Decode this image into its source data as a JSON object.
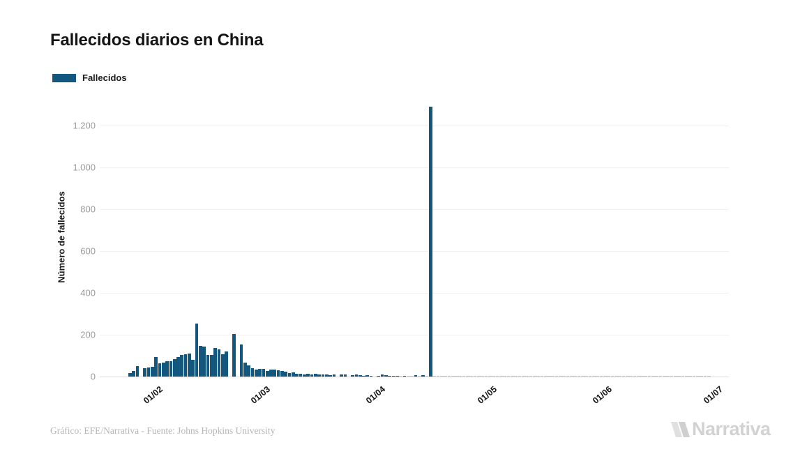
{
  "header": {
    "title": "Fallecidos diarios en China"
  },
  "legend": {
    "label": "Fallecidos"
  },
  "footer": {
    "source": "Gráfico: EFE/Narrativa - Fuente: Johns Hopkins University",
    "logo_text": "Narrativa"
  },
  "colors": {
    "bar": "#14577E",
    "title_text": "#141414",
    "ytick_text": "#9a9a9a",
    "xtick_text": "#141414",
    "gridline": "#f0f0f0",
    "axis_line": "#dcdcdc",
    "footer_text": "#b5b5b5",
    "logo_gray": "#d2d2d2"
  },
  "chart_data": {
    "type": "bar",
    "title": "Fallecidos diarios en China",
    "series_name": "Fallecidos",
    "xlabel": "",
    "ylabel": "Número de fallecidos",
    "ylim": [
      0,
      1333
    ],
    "grid": "horizontal",
    "legend_position": "top-left",
    "yticks": {
      "values": [
        0,
        200,
        400,
        600,
        800,
        1000,
        1200
      ],
      "labels": [
        "0",
        "200",
        "400",
        "600",
        "800",
        "1.000",
        "1.200"
      ]
    },
    "xticks": [
      {
        "label": "01/02",
        "day_index": 5
      },
      {
        "label": "01/03",
        "day_index": 34
      },
      {
        "label": "01/04",
        "day_index": 65
      },
      {
        "label": "01/05",
        "day_index": 95
      },
      {
        "label": "01/06",
        "day_index": 126
      },
      {
        "label": "01/07",
        "day_index": 156
      }
    ],
    "dates": [
      "27/01",
      "28/01",
      "29/01",
      "30/01",
      "31/01",
      "01/02",
      "02/02",
      "03/02",
      "04/02",
      "05/02",
      "06/02",
      "07/02",
      "08/02",
      "09/02",
      "10/02",
      "11/02",
      "12/02",
      "13/02",
      "14/02",
      "15/02",
      "16/02",
      "17/02",
      "18/02",
      "19/02",
      "20/02",
      "21/02",
      "22/02",
      "23/02",
      "24/02",
      "25/02",
      "26/02",
      "27/02",
      "28/02",
      "29/02",
      "01/03",
      "02/03",
      "03/03",
      "04/03",
      "05/03",
      "06/03",
      "07/03",
      "08/03",
      "09/03",
      "10/03",
      "11/03",
      "12/03",
      "13/03",
      "14/03",
      "15/03",
      "16/03",
      "17/03",
      "18/03",
      "19/03",
      "20/03",
      "21/03",
      "22/03",
      "23/03",
      "24/03",
      "25/03",
      "26/03",
      "27/03",
      "28/03",
      "29/03",
      "30/03",
      "31/03",
      "01/04",
      "02/04",
      "03/04",
      "04/04",
      "05/04",
      "06/04",
      "07/04",
      "08/04",
      "09/04",
      "10/04",
      "11/04",
      "12/04",
      "13/04",
      "14/04",
      "15/04",
      "16/04",
      "17/04",
      "18/04",
      "19/04",
      "20/04",
      "21/04",
      "22/04",
      "23/04",
      "24/04",
      "25/04",
      "26/04",
      "27/04",
      "28/04",
      "29/04",
      "30/04",
      "01/05",
      "02/05",
      "03/05",
      "04/05",
      "05/05",
      "06/05",
      "07/05",
      "08/05",
      "09/05",
      "10/05",
      "11/05",
      "12/05",
      "13/05",
      "14/05",
      "15/05",
      "16/05",
      "17/05",
      "18/05",
      "19/05",
      "20/05",
      "21/05",
      "22/05",
      "23/05",
      "24/05",
      "25/05",
      "26/05",
      "27/05",
      "28/05",
      "29/05",
      "30/05",
      "31/05",
      "01/06",
      "02/06",
      "03/06",
      "04/06",
      "05/06",
      "06/06",
      "07/06",
      "08/06",
      "09/06",
      "10/06",
      "11/06",
      "12/06",
      "13/06",
      "14/06",
      "15/06",
      "16/06",
      "17/06",
      "18/06",
      "19/06",
      "20/06",
      "21/06",
      "22/06",
      "23/06",
      "24/06",
      "25/06",
      "26/06",
      "27/06",
      "28/06",
      "29/06",
      "30/06",
      "01/07"
    ],
    "values": [
      17,
      28,
      50,
      0,
      39,
      43,
      47,
      95,
      64,
      68,
      73,
      75,
      85,
      92,
      103,
      106,
      110,
      80,
      253,
      147,
      143,
      105,
      102,
      136,
      131,
      108,
      119,
      0,
      205,
      0,
      153,
      67,
      54,
      40,
      33,
      38,
      38,
      28,
      35,
      33,
      31,
      27,
      24,
      18,
      20,
      13,
      15,
      11,
      13,
      9,
      13,
      11,
      9,
      11,
      7,
      9,
      0,
      11,
      9,
      0,
      7,
      9,
      8,
      5,
      8,
      5,
      0,
      4,
      10,
      8,
      5,
      4,
      5,
      2,
      5,
      2,
      3,
      6,
      2,
      6,
      2,
      1290,
      1,
      1,
      1,
      1,
      1,
      1,
      1,
      1,
      1,
      1,
      1,
      1,
      1,
      1,
      1,
      1,
      1,
      1,
      1,
      1,
      1,
      1,
      1,
      1,
      1,
      1,
      1,
      1,
      1,
      1,
      1,
      1,
      1,
      1,
      1,
      1,
      1,
      1,
      1,
      1,
      1,
      1,
      1,
      1,
      1,
      1,
      1,
      1,
      1,
      1,
      1,
      1,
      1,
      1,
      1,
      1,
      1,
      1,
      1,
      1,
      1,
      1,
      1,
      1,
      1,
      1,
      1,
      1,
      1,
      1,
      1,
      1,
      1,
      1,
      1
    ]
  }
}
